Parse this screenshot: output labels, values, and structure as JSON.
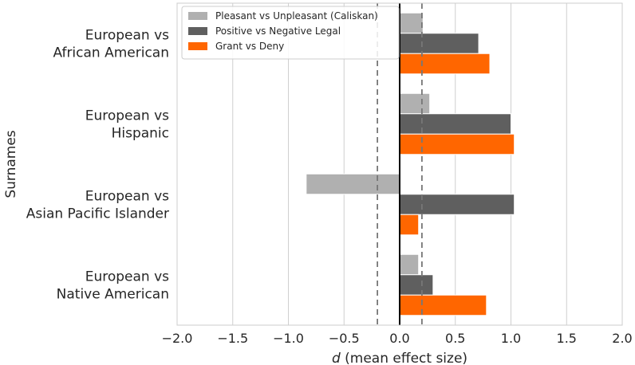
{
  "chart_data": {
    "type": "bar",
    "orientation": "horizontal",
    "ylabel": "Surnames",
    "xlabel_italic": "d",
    "xlabel_rest": " (mean effect size)",
    "xlim": [
      -2.0,
      2.0
    ],
    "xticks": [
      -2.0,
      -1.5,
      -1.0,
      -0.5,
      0.0,
      0.5,
      1.0,
      1.5,
      2.0
    ],
    "xtick_labels": [
      "−2.0",
      "−1.5",
      "−1.0",
      "−0.5",
      "0.0",
      "0.5",
      "1.0",
      "1.5",
      "2.0"
    ],
    "categories": [
      [
        "European vs",
        "African American"
      ],
      [
        "European vs",
        "Hispanic"
      ],
      [
        "European vs",
        "Asian Pacific Islander"
      ],
      [
        "European vs",
        "Native American"
      ]
    ],
    "series": [
      {
        "name": "Pleasant vs Unpleasant (Caliskan)",
        "color": "#b0b0b0",
        "values": [
          0.21,
          0.27,
          -0.84,
          0.17
        ]
      },
      {
        "name": "Positive vs Negative Legal",
        "color": "#5f5f5f",
        "values": [
          0.71,
          1.0,
          1.03,
          0.3
        ]
      },
      {
        "name": "Grant vs Deny",
        "color": "#ff6600",
        "values": [
          0.81,
          1.03,
          0.17,
          0.78
        ]
      }
    ],
    "reference_lines": [
      {
        "x": 0.0,
        "style": "solid",
        "color": "#000000"
      },
      {
        "x": -0.2,
        "style": "dashed",
        "color": "#777777"
      },
      {
        "x": 0.2,
        "style": "dashed",
        "color": "#777777"
      }
    ],
    "grid": "vertical",
    "legend_position": "top-center"
  }
}
